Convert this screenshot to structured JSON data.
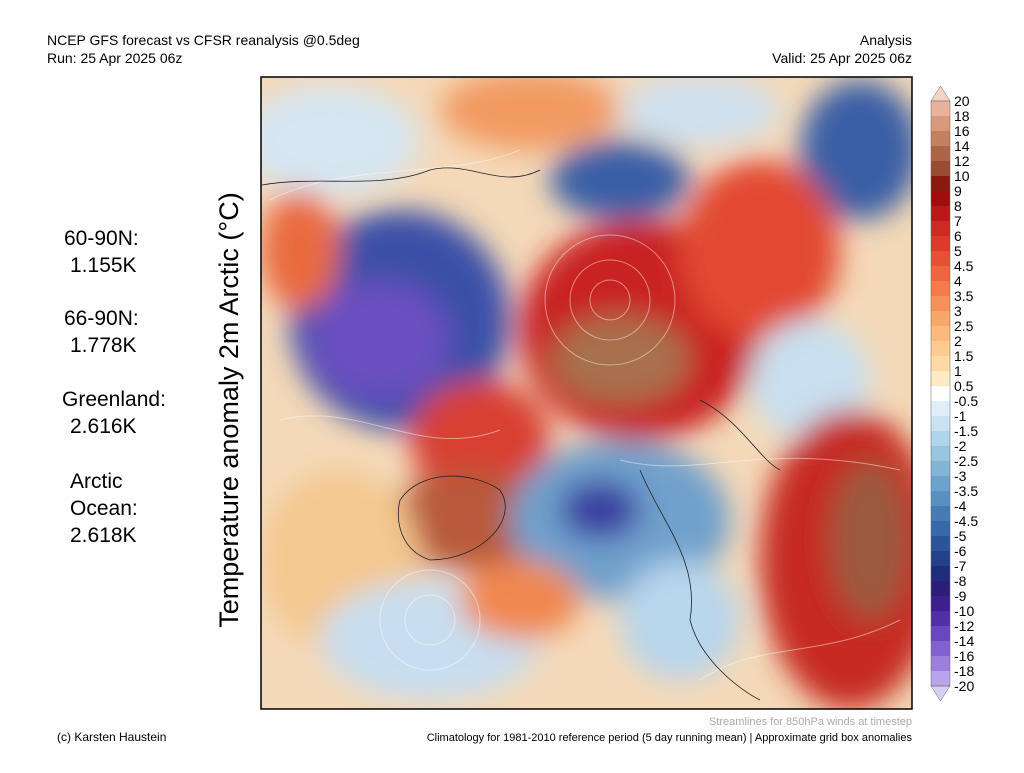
{
  "header": {
    "title": "NCEP GFS forecast vs CFSR reanalysis @0.5deg",
    "run": "Run: 25 Apr 2025 06z",
    "kind": "Analysis",
    "valid": "Valid: 25 Apr 2025 06z"
  },
  "axis_label": "Temperature anomaly 2m Arctic (°C)",
  "stats": [
    {
      "region": "60-90N:",
      "value": "1.155K"
    },
    {
      "region": "66-90N:",
      "value": "1.778K"
    },
    {
      "region": "Greenland:",
      "value": "2.616K"
    },
    {
      "region": "Arctic Ocean:",
      "value": "2.618K"
    }
  ],
  "colorbar": {
    "labels": [
      20,
      18,
      16,
      14,
      12,
      10,
      9,
      8,
      7,
      6,
      5,
      4.5,
      4,
      3.5,
      3,
      2.5,
      2,
      1.5,
      1,
      0.5,
      -0.5,
      -1,
      -1.5,
      -2,
      -2.5,
      -3,
      -3.5,
      -4,
      -4.5,
      -5,
      -6,
      -7,
      -8,
      -9,
      -10,
      -12,
      -14,
      -16,
      -18,
      -20
    ],
    "colors": [
      "#f6d3c3",
      "#e8b39d",
      "#d8987c",
      "#c4805f",
      "#ae6547",
      "#984c32",
      "#8a1a10",
      "#a00d0d",
      "#b81818",
      "#cc2a22",
      "#dc3a2a",
      "#e65034",
      "#ee6640",
      "#f47c4c",
      "#f7915a",
      "#f9a66a",
      "#fbba7c",
      "#fccb90",
      "#fdd9a6",
      "#feeac4",
      "#ffffff",
      "#e0eef8",
      "#c8e2f2",
      "#b0d4ea",
      "#98c4e0",
      "#82b4d6",
      "#6ca2cc",
      "#5890c2",
      "#467cb6",
      "#3868aa",
      "#2c549c",
      "#24408c",
      "#202c7c",
      "#2a1e78",
      "#3c2090",
      "#5030a8",
      "#6848c0",
      "#8062d0",
      "#9a80dc",
      "#b8a4e8",
      "#d8cef4"
    ]
  },
  "footer": {
    "streamlines": "Streamlines for 850hPa winds at timestep",
    "credit": "(c) Karsten Haustein",
    "climatology": "Climatology for 1981-2010 reference period (5 day running mean) | Approximate grid box anomalies"
  }
}
